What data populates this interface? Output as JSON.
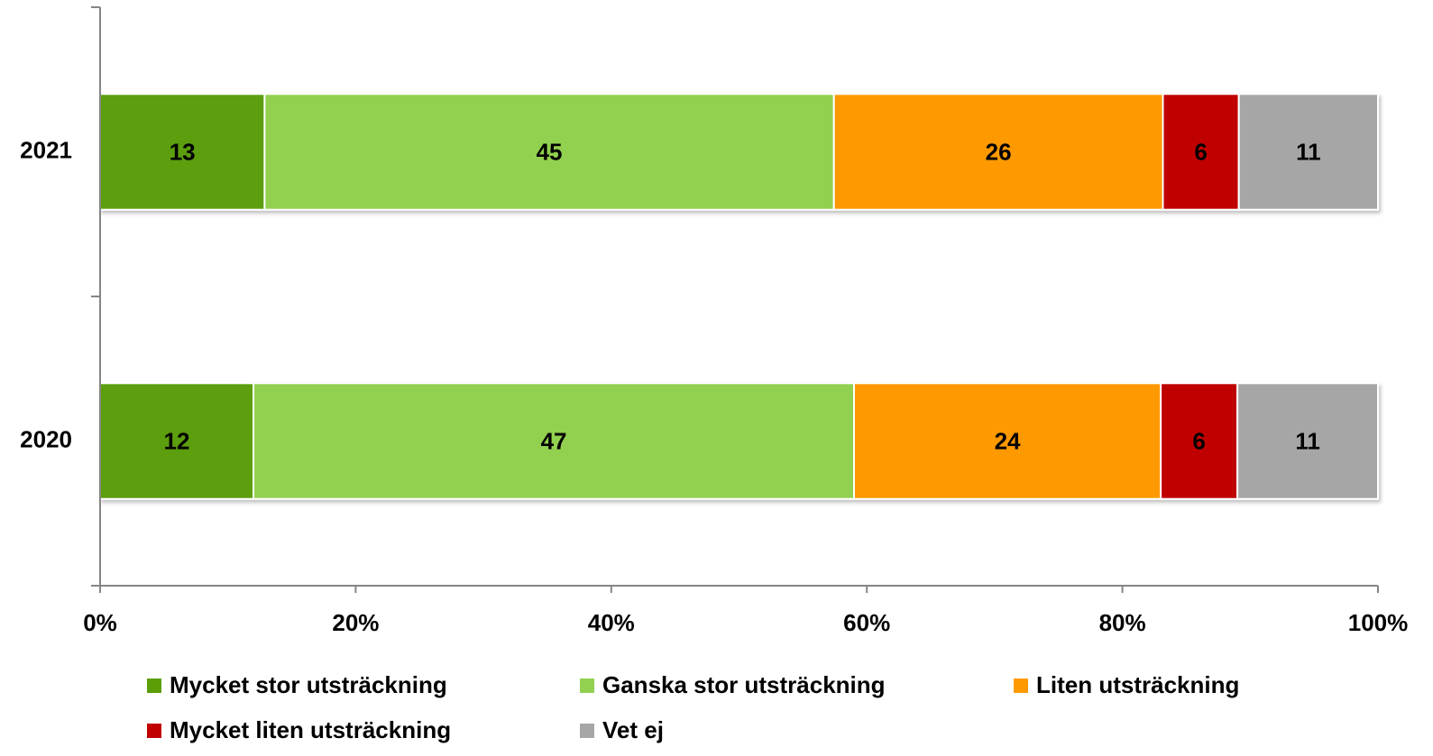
{
  "chart_data": {
    "type": "bar",
    "orientation": "horizontal",
    "stacked": "percent",
    "categories": [
      "2021",
      "2020"
    ],
    "series": [
      {
        "name": "Mycket stor utsträckning",
        "color": "#5b9e07",
        "values": [
          13,
          12
        ]
      },
      {
        "name": "Ganska stor utsträckning",
        "color": "#92d050",
        "values": [
          45,
          47
        ]
      },
      {
        "name": "Liten utsträckning",
        "color": "#ff9900",
        "values": [
          26,
          24
        ]
      },
      {
        "name": "Mycket liten utsträckning",
        "color": "#c00000",
        "values": [
          6,
          6
        ]
      },
      {
        "name": "Vet ej",
        "color": "#a6a6a6",
        "values": [
          11,
          11
        ]
      }
    ],
    "xlim": [
      0,
      100
    ],
    "xticks": [
      {
        "value": 0,
        "label": "0%"
      },
      {
        "value": 20,
        "label": "20%"
      },
      {
        "value": 40,
        "label": "40%"
      },
      {
        "value": 60,
        "label": "60%"
      },
      {
        "value": 80,
        "label": "80%"
      },
      {
        "value": 100,
        "label": "100%"
      }
    ],
    "legend": "bottom"
  }
}
